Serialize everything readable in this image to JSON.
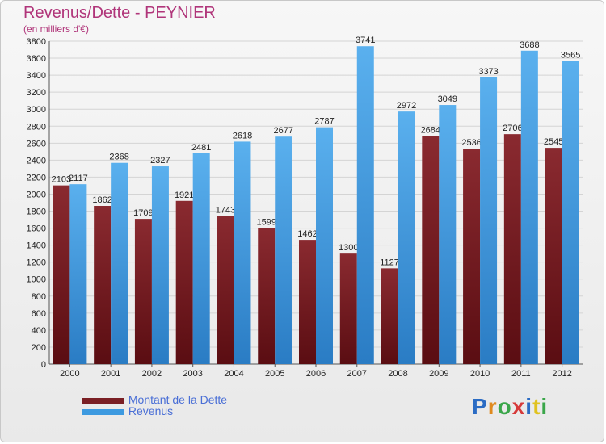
{
  "chart_data": {
    "type": "bar",
    "title": "Revenus/Dette - PEYNIER",
    "subtitle": "(en milliers d'€)",
    "categories": [
      "2000",
      "2001",
      "2002",
      "2003",
      "2004",
      "2005",
      "2006",
      "2007",
      "2008",
      "2009",
      "2010",
      "2011",
      "2012"
    ],
    "series": [
      {
        "name": "Montant de la Dette",
        "color": "#7a1f24",
        "values": [
          2103,
          1862,
          1709,
          1921,
          1743,
          1599,
          1462,
          1300,
          1127,
          2684,
          2536,
          2706,
          2545
        ]
      },
      {
        "name": "Revenus",
        "color": "#3d9ae0",
        "values": [
          2117,
          2368,
          2327,
          2481,
          2618,
          2677,
          2787,
          3741,
          2972,
          3049,
          3373,
          3688,
          3565
        ]
      }
    ],
    "ylim": [
      0,
      3800
    ],
    "yticks": [
      0,
      200,
      400,
      600,
      800,
      1000,
      1200,
      1400,
      1600,
      1800,
      2000,
      2200,
      2400,
      2600,
      2800,
      3000,
      3200,
      3400,
      3600,
      3800
    ],
    "grid": true,
    "legend_position": "bottom-left"
  },
  "logo": {
    "text": "Proxiti",
    "colors": [
      "#2b6cc4",
      "#e08a1e",
      "#3aa64a",
      "#d63a3a",
      "#2b6cc4",
      "#e0c21e",
      "#3aa64a"
    ]
  }
}
